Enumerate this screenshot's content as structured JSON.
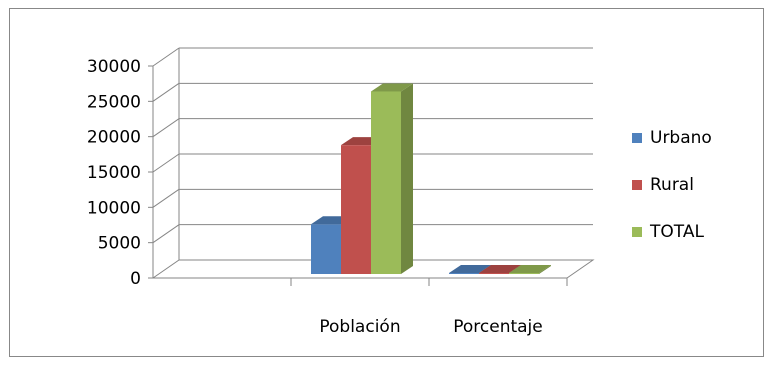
{
  "chart_data": {
    "type": "bar",
    "categories": [
      "Población",
      "Porcentaje"
    ],
    "series": [
      {
        "name": "Urbano",
        "values": [
          7600,
          35
        ],
        "color": "#4F81BD"
      },
      {
        "name": "Rural",
        "values": [
          18800,
          60
        ],
        "color": "#C0504D"
      },
      {
        "name": "TOTAL",
        "values": [
          26400,
          100
        ],
        "color": "#9BBB59"
      }
    ],
    "y_ticks": [
      "0",
      "5000",
      "10000",
      "15000",
      "20000",
      "25000",
      "30000"
    ],
    "ylim": [
      0,
      30000
    ],
    "grid": true,
    "legend": "right",
    "three_d": true
  }
}
